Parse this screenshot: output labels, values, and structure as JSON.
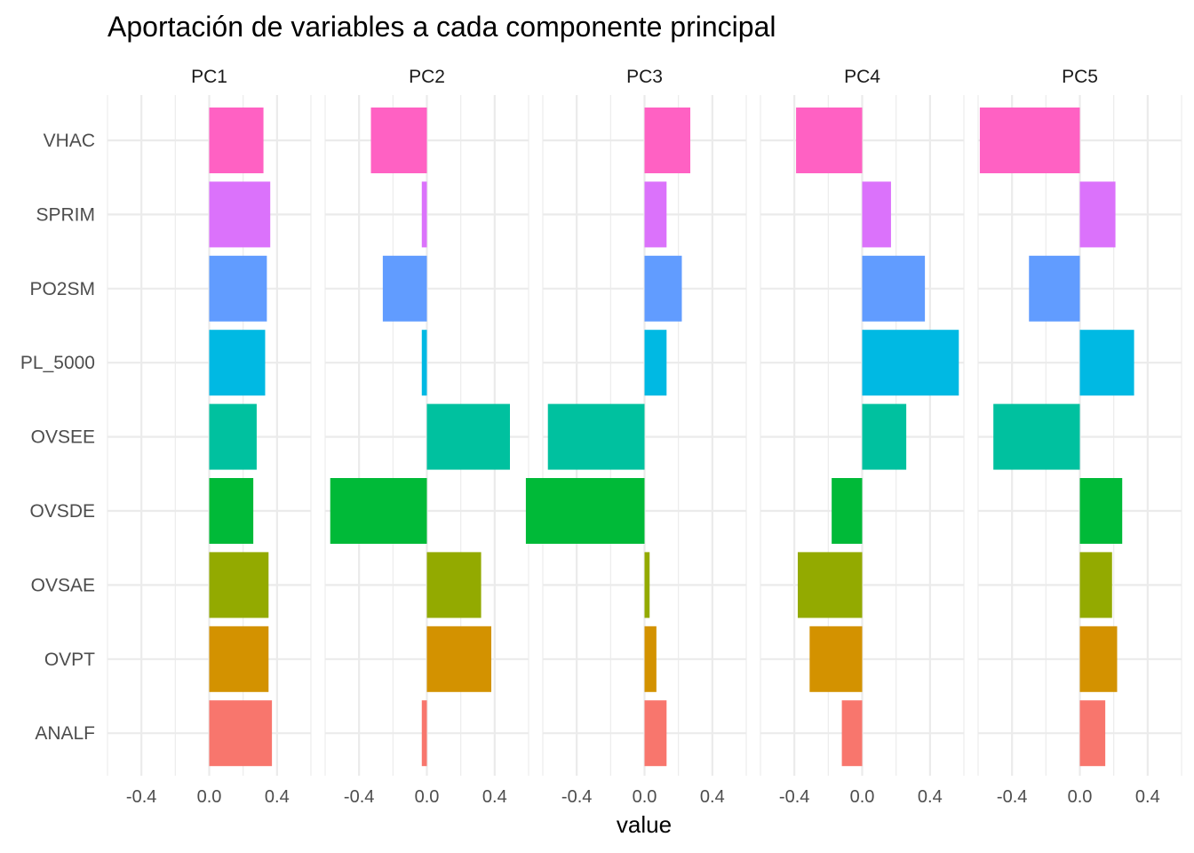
{
  "chart_data": {
    "type": "bar",
    "orientation": "horizontal",
    "faceted": true,
    "title": "Aportación de variables a cada componente principal",
    "xlabel": "value",
    "ylabel": "",
    "xlim": [
      -0.6,
      0.6
    ],
    "xticks": [
      -0.4,
      0.0,
      0.4
    ],
    "xtick_labels": [
      "-0.4",
      "0.0",
      "0.4"
    ],
    "grid": true,
    "legend": "none",
    "categories": [
      "VHAC",
      "SPRIM",
      "PO2SM",
      "PL_5000",
      "OVSEE",
      "OVSDE",
      "OVSAE",
      "OVPT",
      "ANALF"
    ],
    "colors": {
      "VHAC": "#FF61C3",
      "SPRIM": "#DB72FB",
      "PO2SM": "#619CFF",
      "PL_5000": "#00B9E3",
      "OVSEE": "#00C19F",
      "OVSDE": "#00BA38",
      "OVSAE": "#93AA00",
      "OVPT": "#D39200",
      "ANALF": "#F8766D"
    },
    "panels": [
      {
        "name": "PC1",
        "values": [
          0.32,
          0.36,
          0.34,
          0.33,
          0.28,
          0.26,
          0.35,
          0.35,
          0.37
        ]
      },
      {
        "name": "PC2",
        "values": [
          -0.33,
          -0.03,
          -0.26,
          -0.03,
          0.49,
          -0.57,
          0.32,
          0.38,
          -0.03
        ]
      },
      {
        "name": "PC3",
        "values": [
          0.27,
          0.13,
          0.22,
          0.13,
          -0.57,
          -0.7,
          0.03,
          0.07,
          0.13
        ]
      },
      {
        "name": "PC4",
        "values": [
          -0.39,
          0.17,
          0.37,
          0.57,
          0.26,
          -0.18,
          -0.38,
          -0.31,
          -0.12
        ]
      },
      {
        "name": "PC5",
        "values": [
          -0.59,
          0.21,
          -0.3,
          0.32,
          -0.51,
          0.25,
          0.19,
          0.22,
          0.15
        ]
      }
    ]
  }
}
